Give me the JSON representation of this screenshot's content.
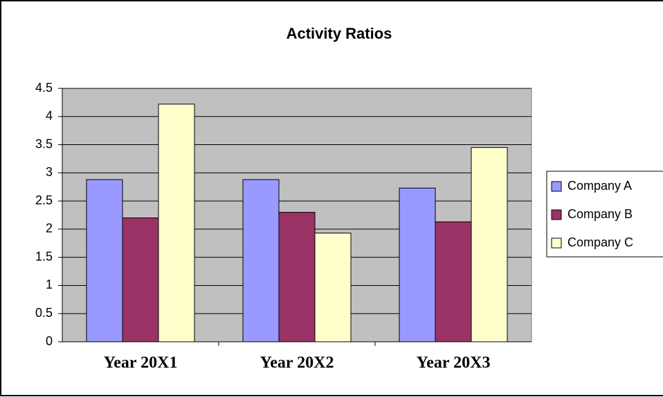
{
  "chart_data": {
    "type": "bar",
    "title": "Activity Ratios",
    "categories": [
      "Year 20X1",
      "Year 20X2",
      "Year 20X3"
    ],
    "series": [
      {
        "name": "Company A",
        "color": "#9999ff",
        "values": [
          2.88,
          2.88,
          2.73
        ]
      },
      {
        "name": "Company B",
        "color": "#993366",
        "values": [
          2.2,
          2.3,
          2.13
        ]
      },
      {
        "name": "Company C",
        "color": "#ffffcc",
        "values": [
          4.22,
          1.93,
          3.45
        ]
      }
    ],
    "ylim": [
      0,
      4.5
    ],
    "yticks": [
      0,
      0.5,
      1,
      1.5,
      2,
      2.5,
      3,
      3.5,
      4,
      4.5
    ],
    "grid": true,
    "legend": "right",
    "plot_background": "#c0c0c0"
  }
}
